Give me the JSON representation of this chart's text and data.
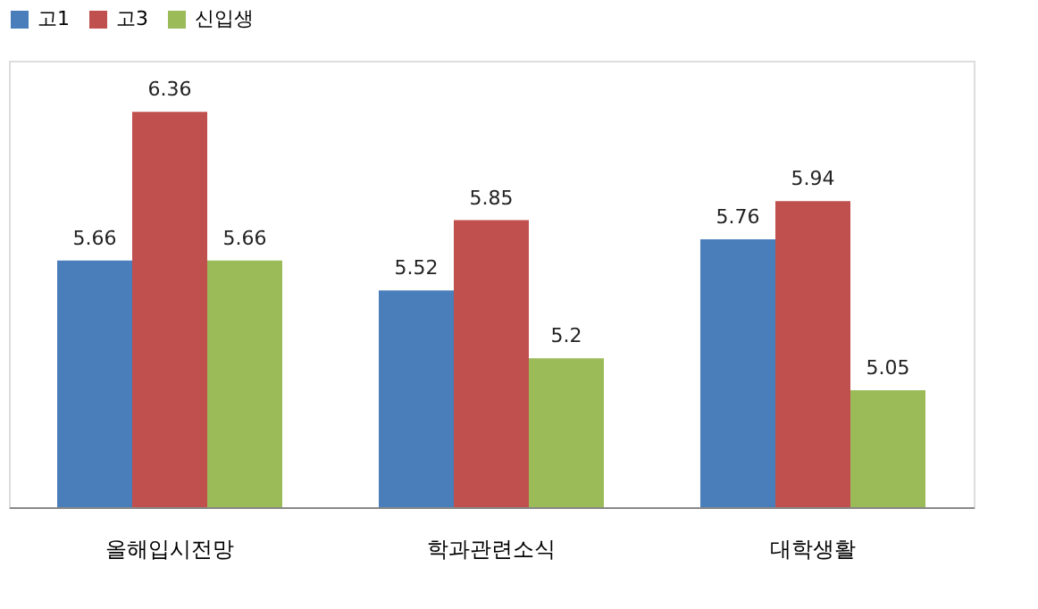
{
  "chart_data": {
    "type": "bar",
    "categories": [
      "올해입시전망",
      "학과관련소식",
      "대학생활"
    ],
    "series": [
      {
        "name": "고1",
        "color": "#4a7ebb",
        "values": [
          5.66,
          5.52,
          5.76
        ]
      },
      {
        "name": "고3",
        "color": "#c0504d",
        "values": [
          6.36,
          5.85,
          5.94
        ]
      },
      {
        "name": "신입생",
        "color": "#9bbb59",
        "values": [
          5.66,
          5.2,
          5.05
        ]
      }
    ],
    "ylim": [
      4.5,
      6.6
    ],
    "data_labels": true,
    "legend": "top",
    "grid": false,
    "tick_labels": "x"
  }
}
